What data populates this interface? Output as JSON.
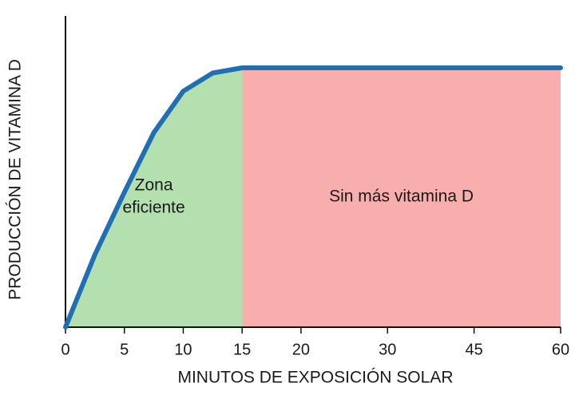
{
  "chart_data": {
    "type": "line",
    "xlabel": "MINUTOS DE EXPOSICIÓN SOLAR",
    "ylabel": "PRODUCCIÓN DE VITAMINA D",
    "x": [
      0,
      2.5,
      5,
      7.5,
      10,
      12.5,
      15,
      20,
      30,
      45,
      60
    ],
    "series": [
      {
        "color": "#1f6fb2",
        "values": [
          0,
          28,
          52,
          75,
          91,
          98,
          100,
          100,
          100,
          100,
          100
        ]
      }
    ],
    "xlim": [
      0,
      60
    ],
    "xticks": [
      0,
      5,
      10,
      15,
      20,
      30,
      45,
      60
    ],
    "ylim": [
      0,
      120
    ],
    "zones": [
      {
        "label": [
          "Zona",
          "eficiente"
        ],
        "from": 0,
        "to": 15,
        "color": "#b3e0ae"
      },
      {
        "label": [
          "Sin más vitamina D"
        ],
        "from": 15,
        "to": 60,
        "color": "#f8aeac"
      }
    ]
  }
}
